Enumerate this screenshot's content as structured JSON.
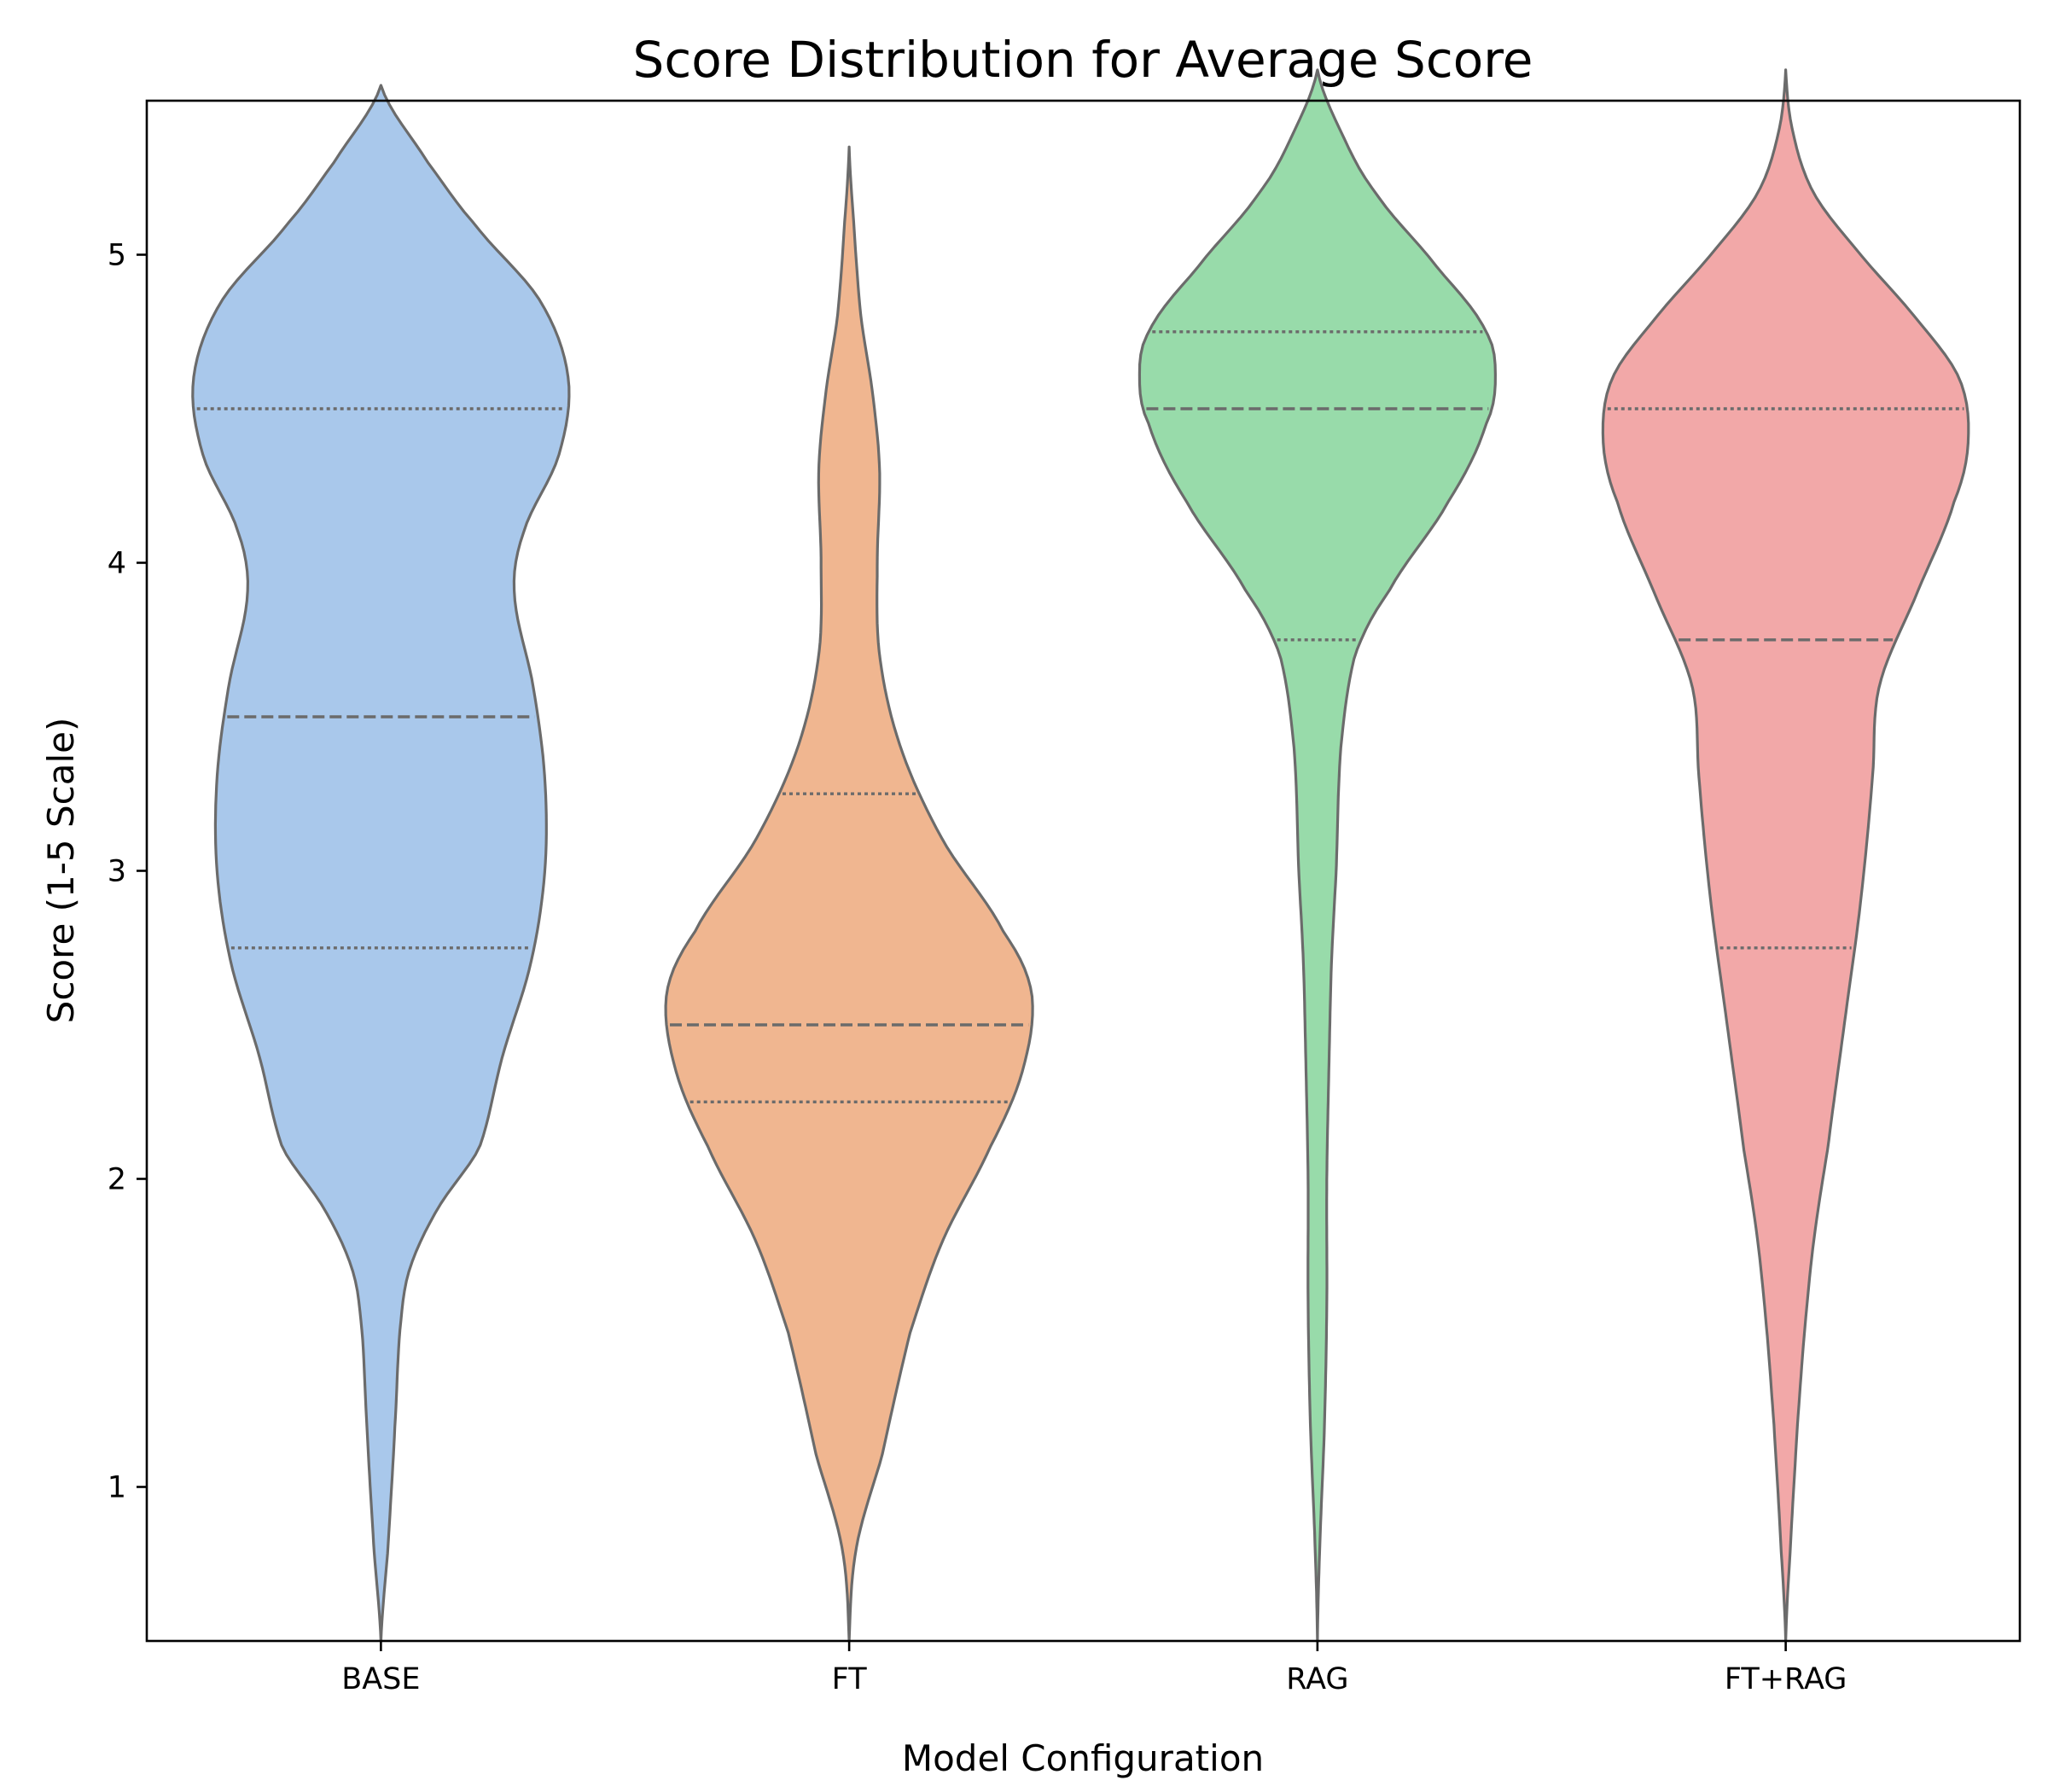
{
  "chart_data": {
    "type": "violin",
    "title": "Score Distribution for Average Score",
    "xlabel": "Model Configuration",
    "ylabel": "Score (1-5 Scale)",
    "ylim": [
      0.5,
      5.5
    ],
    "yticks": [
      1,
      2,
      3,
      4,
      5
    ],
    "grid": false,
    "categories": [
      "BASE",
      "FT",
      "RAG",
      "FT+RAG"
    ],
    "series": [
      {
        "category": "BASE",
        "color": "#a9c8eb",
        "range": [
          0.5,
          5.55
        ],
        "quartiles": [
          2.75,
          3.5,
          4.5
        ],
        "density_profile": [
          [
            0.5,
            0.0
          ],
          [
            0.8,
            0.03
          ],
          [
            1.2,
            0.06
          ],
          [
            1.5,
            0.08
          ],
          [
            1.7,
            0.12
          ],
          [
            1.9,
            0.24
          ],
          [
            2.1,
            0.42
          ],
          [
            2.4,
            0.52
          ],
          [
            2.7,
            0.64
          ],
          [
            3.0,
            0.7
          ],
          [
            3.3,
            0.7
          ],
          [
            3.6,
            0.65
          ],
          [
            3.9,
            0.57
          ],
          [
            4.1,
            0.61
          ],
          [
            4.35,
            0.76
          ],
          [
            4.6,
            0.8
          ],
          [
            4.85,
            0.68
          ],
          [
            5.1,
            0.4
          ],
          [
            5.3,
            0.2
          ],
          [
            5.55,
            0.0
          ]
        ]
      },
      {
        "category": "FT",
        "color": "#f0b690",
        "range": [
          0.5,
          5.35
        ],
        "quartiles": [
          2.25,
          2.5,
          3.25
        ],
        "density_profile": [
          [
            0.5,
            0.0
          ],
          [
            0.8,
            0.03
          ],
          [
            1.1,
            0.14
          ],
          [
            1.5,
            0.26
          ],
          [
            1.8,
            0.4
          ],
          [
            2.1,
            0.6
          ],
          [
            2.35,
            0.74
          ],
          [
            2.6,
            0.78
          ],
          [
            2.8,
            0.66
          ],
          [
            3.1,
            0.4
          ],
          [
            3.4,
            0.22
          ],
          [
            3.7,
            0.13
          ],
          [
            4.0,
            0.12
          ],
          [
            4.3,
            0.13
          ],
          [
            4.55,
            0.1
          ],
          [
            4.8,
            0.05
          ],
          [
            5.1,
            0.02
          ],
          [
            5.35,
            0.0
          ]
        ]
      },
      {
        "category": "RAG",
        "color": "#98dbaa",
        "range": [
          0.5,
          5.6
        ],
        "quartiles": [
          3.75,
          4.5,
          4.75
        ],
        "density_profile": [
          [
            0.5,
            0.0
          ],
          [
            0.8,
            0.01
          ],
          [
            1.2,
            0.03
          ],
          [
            1.6,
            0.04
          ],
          [
            2.0,
            0.04
          ],
          [
            2.4,
            0.05
          ],
          [
            2.7,
            0.06
          ],
          [
            3.0,
            0.08
          ],
          [
            3.4,
            0.1
          ],
          [
            3.7,
            0.16
          ],
          [
            3.9,
            0.3
          ],
          [
            4.2,
            0.56
          ],
          [
            4.45,
            0.72
          ],
          [
            4.6,
            0.76
          ],
          [
            4.75,
            0.72
          ],
          [
            4.95,
            0.52
          ],
          [
            5.2,
            0.25
          ],
          [
            5.4,
            0.1
          ],
          [
            5.6,
            0.0
          ]
        ]
      },
      {
        "category": "FT+RAG",
        "color": "#f2a8a8",
        "range": [
          0.5,
          5.6
        ],
        "quartiles": [
          2.75,
          3.75,
          4.5
        ],
        "density_profile": [
          [
            0.5,
            0.0
          ],
          [
            0.8,
            0.02
          ],
          [
            1.2,
            0.05
          ],
          [
            1.5,
            0.08
          ],
          [
            1.8,
            0.12
          ],
          [
            2.1,
            0.18
          ],
          [
            2.5,
            0.25
          ],
          [
            2.9,
            0.32
          ],
          [
            3.3,
            0.37
          ],
          [
            3.6,
            0.4
          ],
          [
            3.9,
            0.56
          ],
          [
            4.2,
            0.72
          ],
          [
            4.4,
            0.78
          ],
          [
            4.6,
            0.74
          ],
          [
            4.8,
            0.55
          ],
          [
            5.0,
            0.32
          ],
          [
            5.2,
            0.12
          ],
          [
            5.4,
            0.03
          ],
          [
            5.6,
            0.0
          ]
        ]
      }
    ]
  },
  "style": {
    "outline_color": "#6b6b6b",
    "axis_color": "#000000"
  }
}
